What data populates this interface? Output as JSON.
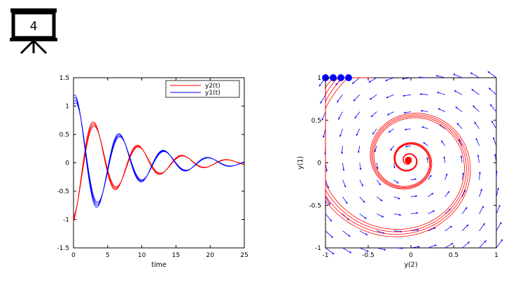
{
  "slide": {
    "number": "4",
    "icon": "presentation-easel-icon"
  },
  "colors": {
    "red": "#ff0000",
    "blue": "#0000ff",
    "axis": "#000000"
  },
  "chart_data": [
    {
      "type": "line",
      "title": "",
      "xlabel": "time",
      "ylabel": "",
      "xlim": [
        0,
        25
      ],
      "ylim": [
        -1.5,
        1.5
      ],
      "xticks": [
        "0",
        "5",
        "10",
        "15",
        "20",
        "25"
      ],
      "yticks": [
        "1.5",
        "1",
        "0.5",
        "0",
        "-0.5",
        "-1",
        "-1.5"
      ],
      "legend": {
        "position": "top-right",
        "entries": [
          "y2(t)",
          "y1(t)"
        ]
      },
      "series": [
        {
          "name": "y2(t)",
          "color": "#ff0000",
          "model": "damped oscillation",
          "x_range": [
            0,
            25
          ],
          "initial": -1.0,
          "damping": 0.13,
          "omega": 0.97,
          "amplitude_band": 0.05,
          "strands": 4
        },
        {
          "name": "y1(t)",
          "color": "#0000ff",
          "model": "damped oscillation",
          "x_range": [
            0,
            25
          ],
          "initial": 1.1,
          "damping": 0.13,
          "omega": 0.97,
          "amplitude_band": 0.05,
          "strands": 4
        }
      ]
    },
    {
      "type": "phase-portrait",
      "title": "",
      "xlabel": "y(2)",
      "ylabel": "y(1)",
      "xlim": [
        -1,
        1
      ],
      "ylim": [
        -1,
        1
      ],
      "xticks": [
        "-1",
        "-0.5",
        "0",
        "0.5",
        "1"
      ],
      "yticks": [
        "1",
        "0.5",
        "0",
        "-0.5",
        "-1"
      ],
      "vector_field": {
        "color": "#0000ff",
        "grid": 11
      },
      "trajectories": {
        "color": "#ff0000",
        "count": 4,
        "end_point": [
          -0.03,
          0.03
        ]
      },
      "start_points": {
        "color": "#0000ff",
        "points": [
          [
            -1,
            1
          ],
          [
            -0.91,
            1
          ],
          [
            -0.82,
            1
          ],
          [
            -0.73,
            1
          ]
        ]
      }
    }
  ]
}
